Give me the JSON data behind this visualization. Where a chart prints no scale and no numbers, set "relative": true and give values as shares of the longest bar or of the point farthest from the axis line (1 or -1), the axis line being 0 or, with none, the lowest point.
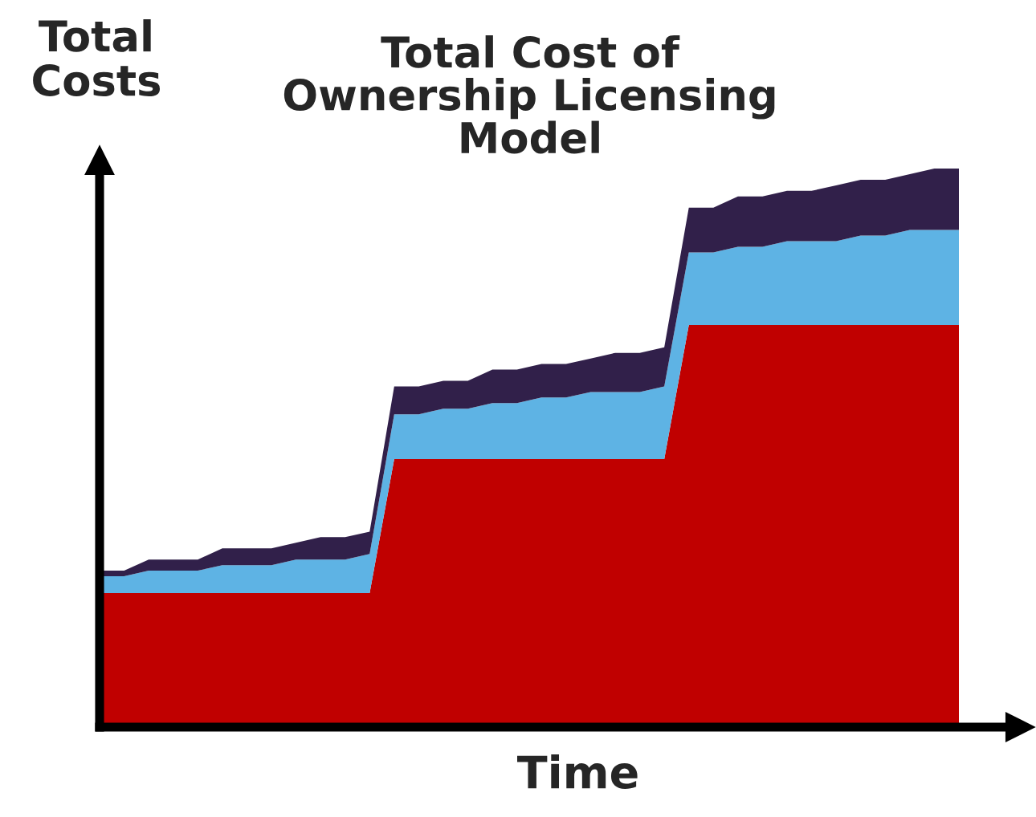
{
  "chart_data": {
    "type": "area",
    "title": "Total Cost of\nOwnership Licensing\nModel",
    "xlabel": "Time",
    "ylabel": "Total\nCosts",
    "relative": true,
    "stacked": true,
    "legend": false,
    "grid": false,
    "categories": [
      null,
      null,
      null,
      null,
      null,
      null,
      null,
      null,
      null,
      null,
      null,
      null,
      null,
      null,
      null,
      null,
      null,
      null,
      null,
      null,
      null,
      null,
      null,
      null,
      null,
      null,
      null,
      null,
      null,
      null,
      null,
      null,
      null,
      null,
      null,
      null
    ],
    "series": [
      {
        "color": "#c00000",
        "values": [
          0.24,
          0.24,
          0.24,
          0.24,
          0.24,
          0.24,
          0.24,
          0.24,
          0.24,
          0.24,
          0.24,
          0.24,
          0.48,
          0.48,
          0.48,
          0.48,
          0.48,
          0.48,
          0.48,
          0.48,
          0.48,
          0.48,
          0.48,
          0.48,
          0.72,
          0.72,
          0.72,
          0.72,
          0.72,
          0.72,
          0.72,
          0.72,
          0.72,
          0.72,
          0.72,
          0.72
        ]
      },
      {
        "color": "#5eb3e4",
        "values": [
          0.03,
          0.03,
          0.04,
          0.04,
          0.04,
          0.05,
          0.05,
          0.05,
          0.06,
          0.06,
          0.06,
          0.07,
          0.08,
          0.08,
          0.09,
          0.09,
          0.1,
          0.1,
          0.11,
          0.11,
          0.12,
          0.12,
          0.12,
          0.13,
          0.13,
          0.13,
          0.14,
          0.14,
          0.15,
          0.15,
          0.15,
          0.16,
          0.16,
          0.17,
          0.17,
          0.17
        ]
      },
      {
        "color": "#31204a",
        "values": [
          0.01,
          0.01,
          0.02,
          0.02,
          0.02,
          0.03,
          0.03,
          0.03,
          0.03,
          0.04,
          0.04,
          0.04,
          0.05,
          0.05,
          0.05,
          0.05,
          0.06,
          0.06,
          0.06,
          0.06,
          0.06,
          0.07,
          0.07,
          0.07,
          0.08,
          0.08,
          0.09,
          0.09,
          0.09,
          0.09,
          0.1,
          0.1,
          0.1,
          0.1,
          0.11,
          0.11
        ]
      }
    ]
  }
}
